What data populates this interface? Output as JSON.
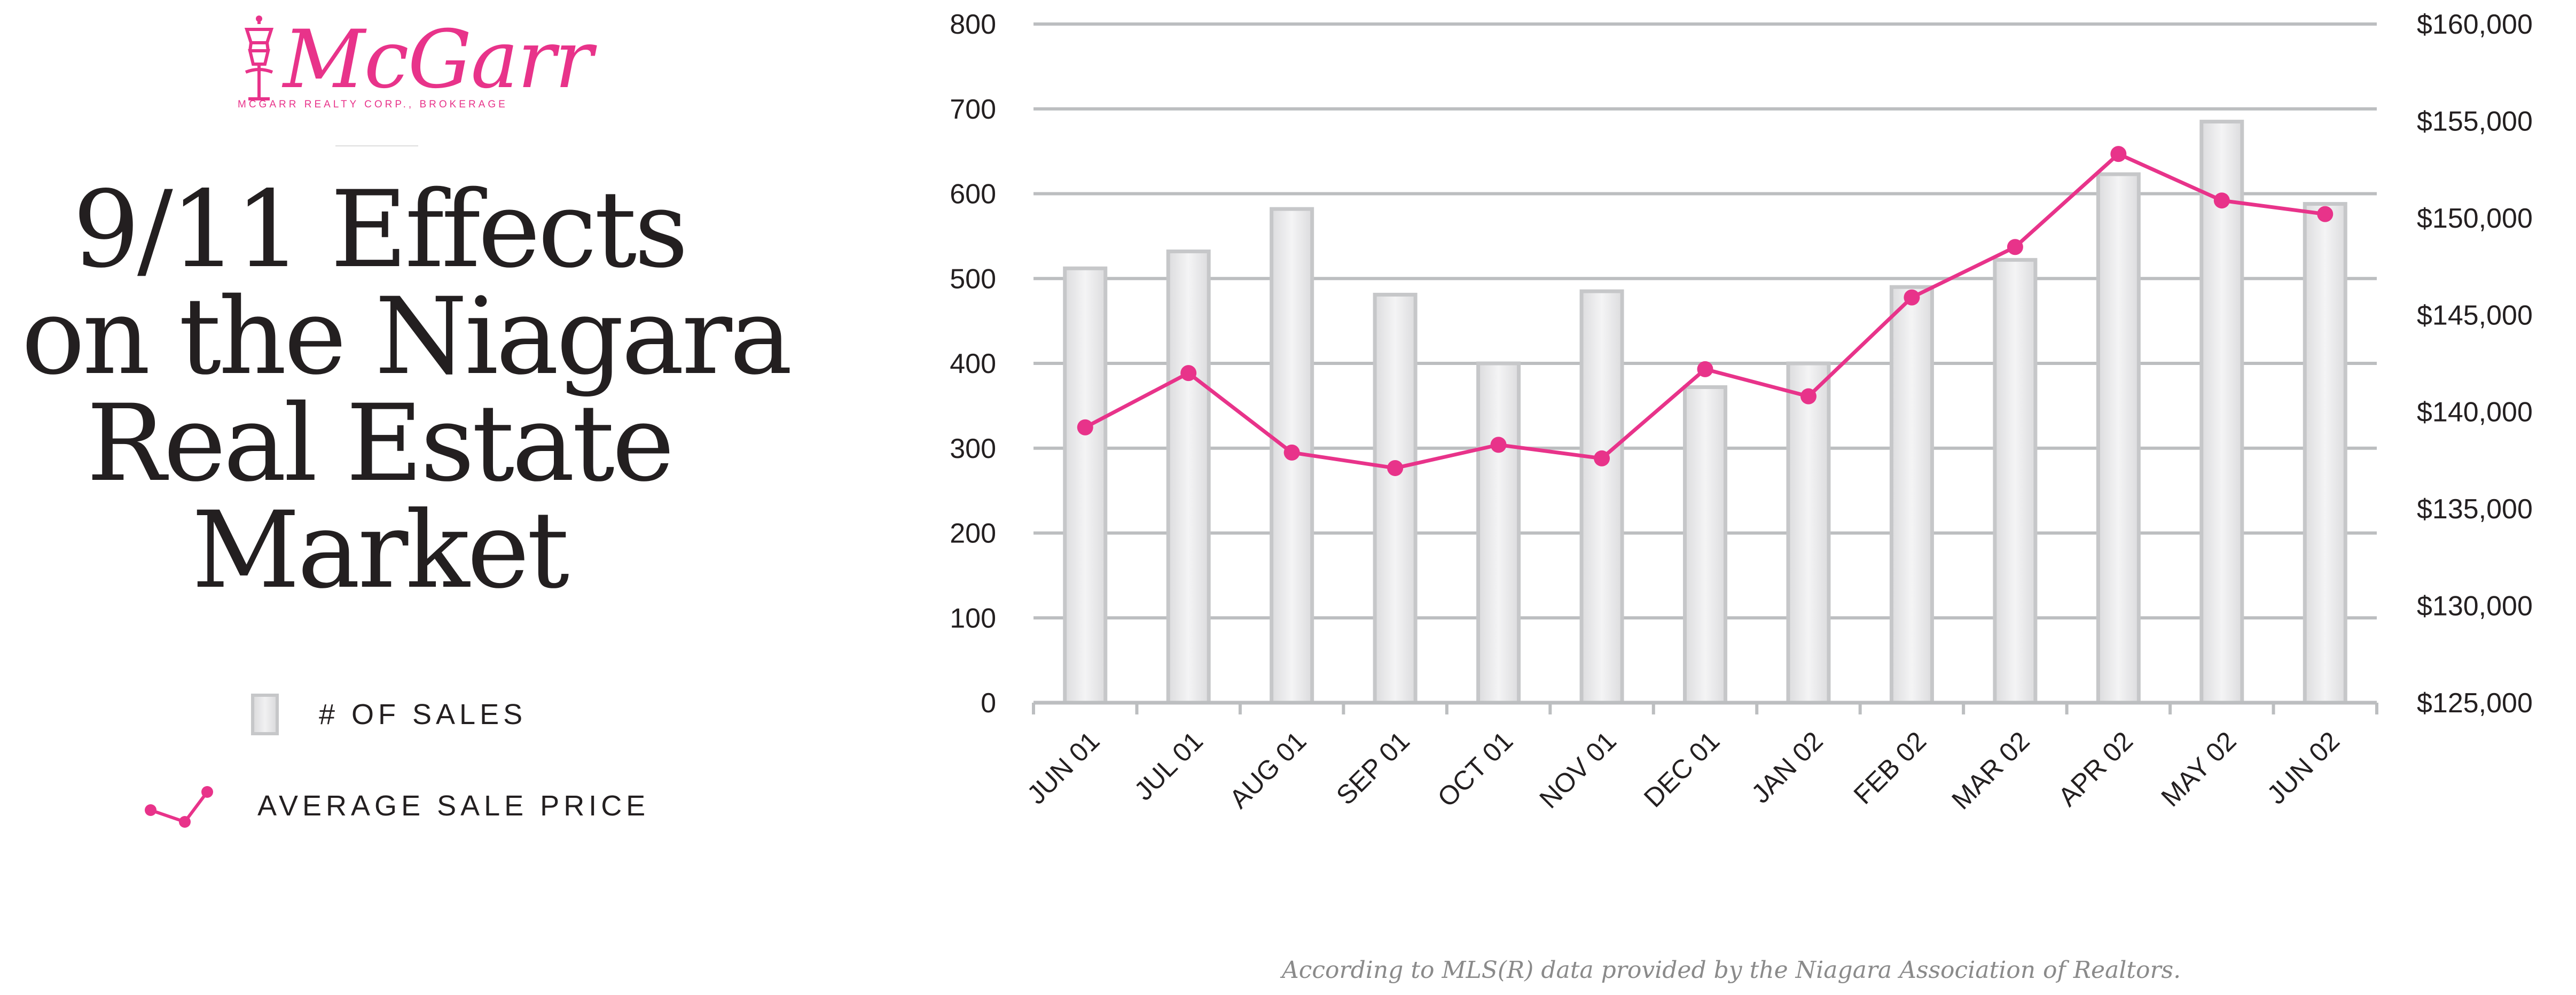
{
  "logo": {
    "name": "McGarr",
    "tagline": "MCGARR REALTY CORP., BROKERAGE",
    "color": "#e8338a"
  },
  "title_lines": [
    "9/11 Effects",
    "on the Niagara",
    "Real Estate",
    "Market"
  ],
  "legend": {
    "sales_label": "# OF SALES",
    "price_label": "AVERAGE SALE PRICE"
  },
  "footer": "According to MLS(R) data provided by the Niagara Association of Realtors.",
  "colors": {
    "bar_fill": "#e6e7e8",
    "bar_border": "#c6c7c9",
    "line": "#e8338a",
    "grid": "#bcbec0",
    "text": "#231f20"
  },
  "chart_data": {
    "type": "bar",
    "categories": [
      "JUN 01",
      "JUL 01",
      "AUG 01",
      "SEP 01",
      "OCT 01",
      "NOV 01",
      "DEC 01",
      "JAN 02",
      "FEB 02",
      "MAR 02",
      "APR 02",
      "MAY 02",
      "JUN 02"
    ],
    "series": [
      {
        "name": "# OF SALES",
        "type": "bar",
        "axis": "left",
        "values": [
          512,
          532,
          582,
          481,
          400,
          485,
          372,
          400,
          490,
          522,
          623,
          685,
          588
        ]
      },
      {
        "name": "AVERAGE SALE PRICE",
        "type": "line",
        "axis": "right",
        "values": [
          139200,
          142000,
          137900,
          137100,
          138300,
          137600,
          142200,
          140800,
          145900,
          148500,
          153300,
          150900,
          150200
        ]
      }
    ],
    "ylim_left": [
      0,
      800
    ],
    "yticks_left": [
      "0",
      "100",
      "200",
      "300",
      "400",
      "500",
      "600",
      "700",
      "800"
    ],
    "ylim_right": [
      125000,
      160000
    ],
    "yticks_right": [
      "$125,000",
      "$130,000",
      "$135,000",
      "$140,000",
      "$145,000",
      "$150,000",
      "$155,000",
      "$160,000"
    ],
    "grid": true
  }
}
